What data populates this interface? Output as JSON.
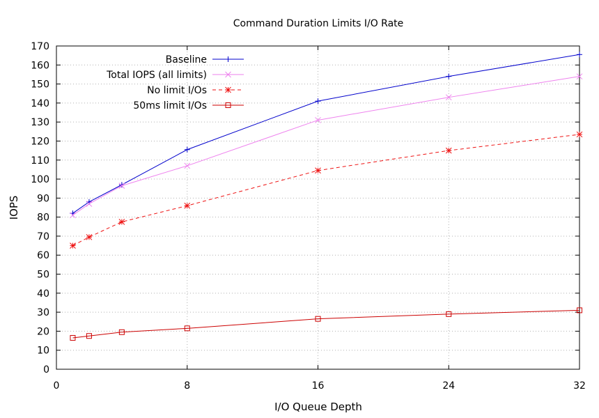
{
  "chart_data": {
    "type": "line",
    "title": "Command Duration Limits I/O Rate",
    "xlabel": "I/O Queue Depth",
    "ylabel": "IOPS",
    "xlim": [
      0,
      32
    ],
    "ylim": [
      0,
      170
    ],
    "xticks": [
      0,
      8,
      16,
      24,
      32
    ],
    "yticks": [
      0,
      10,
      20,
      30,
      40,
      50,
      60,
      70,
      80,
      90,
      100,
      110,
      120,
      130,
      140,
      150,
      160,
      170
    ],
    "grid": true,
    "legend_position": "top-left",
    "x": [
      1,
      2,
      4,
      8,
      16,
      24,
      32
    ],
    "series": [
      {
        "name": "Baseline",
        "color": "#0000cc",
        "marker": "plus",
        "dash": "solid",
        "values": [
          82,
          88,
          97,
          115.5,
          141,
          154,
          165.5
        ]
      },
      {
        "name": "Total IOPS (all limits)",
        "color": "#ee82ee",
        "marker": "cross",
        "dash": "solid",
        "values": [
          81,
          87,
          96.5,
          107,
          131,
          143,
          154
        ]
      },
      {
        "name": "No limit I/Os",
        "color": "#ee1111",
        "marker": "star",
        "dash": "dashed",
        "values": [
          65,
          69.5,
          77.5,
          86,
          104.5,
          115,
          123.5
        ]
      },
      {
        "name": "50ms limit I/Os",
        "color": "#cc0000",
        "marker": "square",
        "dash": "solid",
        "values": [
          16.5,
          17.5,
          19.5,
          21.5,
          26.5,
          29,
          31
        ]
      }
    ]
  }
}
